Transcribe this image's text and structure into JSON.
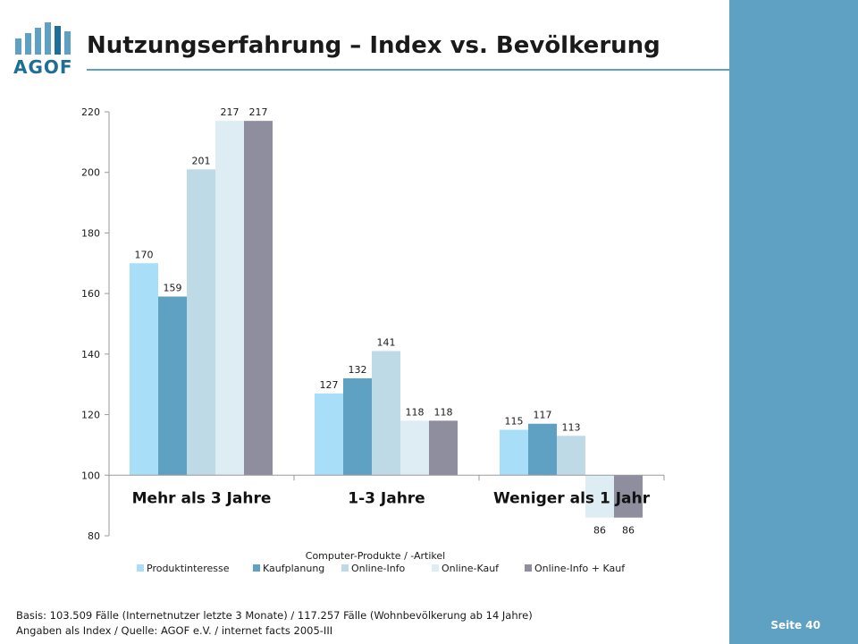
{
  "header": {
    "title": "Nutzungserfahrung – Index vs. Bevölkerung",
    "logo_text": "AGOF"
  },
  "sidebar": {
    "page_label": "Seite 40"
  },
  "colors": {
    "sidebar": "#5fa1c3",
    "accent": "#1e6e96",
    "series": [
      "#a8def7",
      "#5fa1c3",
      "#bedae6",
      "#deecf3",
      "#8e8e9e"
    ]
  },
  "chart_data": {
    "type": "bar",
    "categories": [
      "Mehr als 3 Jahre",
      "1-3 Jahre",
      "Weniger als 1 Jahr"
    ],
    "series": [
      {
        "name": "Produktinteresse",
        "values": [
          170,
          127,
          115
        ]
      },
      {
        "name": "Kaufplanung",
        "values": [
          159,
          132,
          117
        ]
      },
      {
        "name": "Online-Info",
        "values": [
          201,
          141,
          113
        ]
      },
      {
        "name": "Online-Kauf",
        "values": [
          217,
          118,
          86
        ]
      },
      {
        "name": "Online-Info + Kauf",
        "values": [
          217,
          118,
          86
        ]
      }
    ],
    "xlabel": "Computer-Produkte / -Artikel",
    "ylabel": "",
    "ylim": [
      80,
      220
    ],
    "yticks": [
      80,
      100,
      120,
      140,
      160,
      180,
      200,
      220
    ],
    "baseline": 100,
    "legend": "bottom",
    "grid": false
  },
  "footnote": {
    "line1": "Basis: 103.509 Fälle (Internetnutzer letzte 3 Monate) / 117.257 Fälle (Wohnbevölkerung ab 14 Jahre)",
    "line2": "Angaben als Index / Quelle: AGOF e.V. / internet facts 2005-III"
  }
}
